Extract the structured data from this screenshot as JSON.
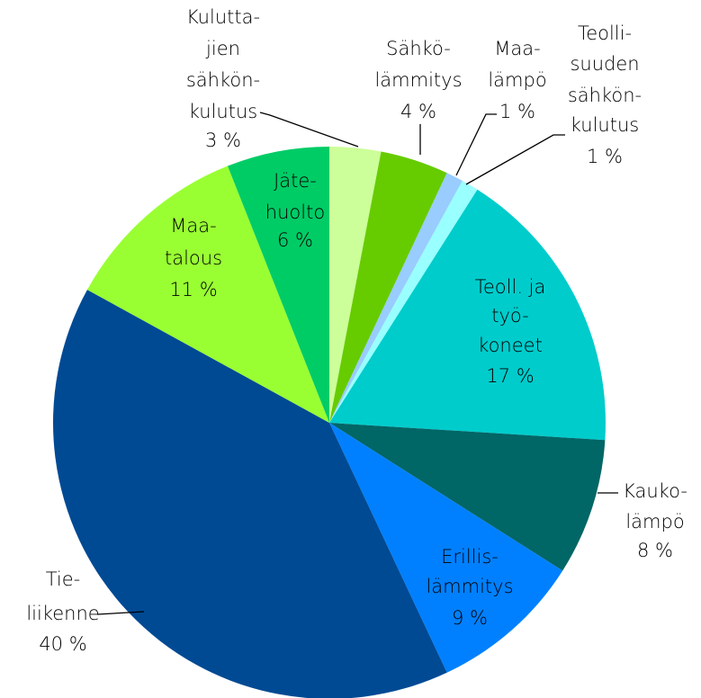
{
  "chart_data": {
    "type": "pie",
    "categories": [
      [
        "Kulutta-",
        "jien",
        "sähkön-",
        "kulutus"
      ],
      [
        "Sähkö-",
        "lämmitys"
      ],
      [
        "Maa-",
        "lämpö"
      ],
      [
        "Teolli-",
        "suuden",
        "sähkön-",
        "kulutus"
      ],
      [
        "Teoll. ja",
        "työ-",
        "koneet"
      ],
      [
        "Kauko-",
        "lämpö"
      ],
      [
        "Erillis-",
        "lämmitys"
      ],
      [
        "Tie-",
        "liikenne"
      ],
      [
        "Maa-",
        "talous"
      ],
      [
        "Jäte-",
        "huolto"
      ]
    ],
    "values": [
      3,
      4,
      1,
      1,
      17,
      8,
      9,
      40,
      11,
      6
    ],
    "value_labels": [
      "3 %",
      "4 %",
      "1 %",
      "1 %",
      "17 %",
      "8 %",
      "9 %",
      "40 %",
      "11 %",
      "6 %"
    ],
    "colors": [
      "#ccff99",
      "#66cc00",
      "#99ccff",
      "#99ffff",
      "#00cccc",
      "#006666",
      "#0080ff",
      "#004a94",
      "#99ff33",
      "#00cc66"
    ]
  }
}
